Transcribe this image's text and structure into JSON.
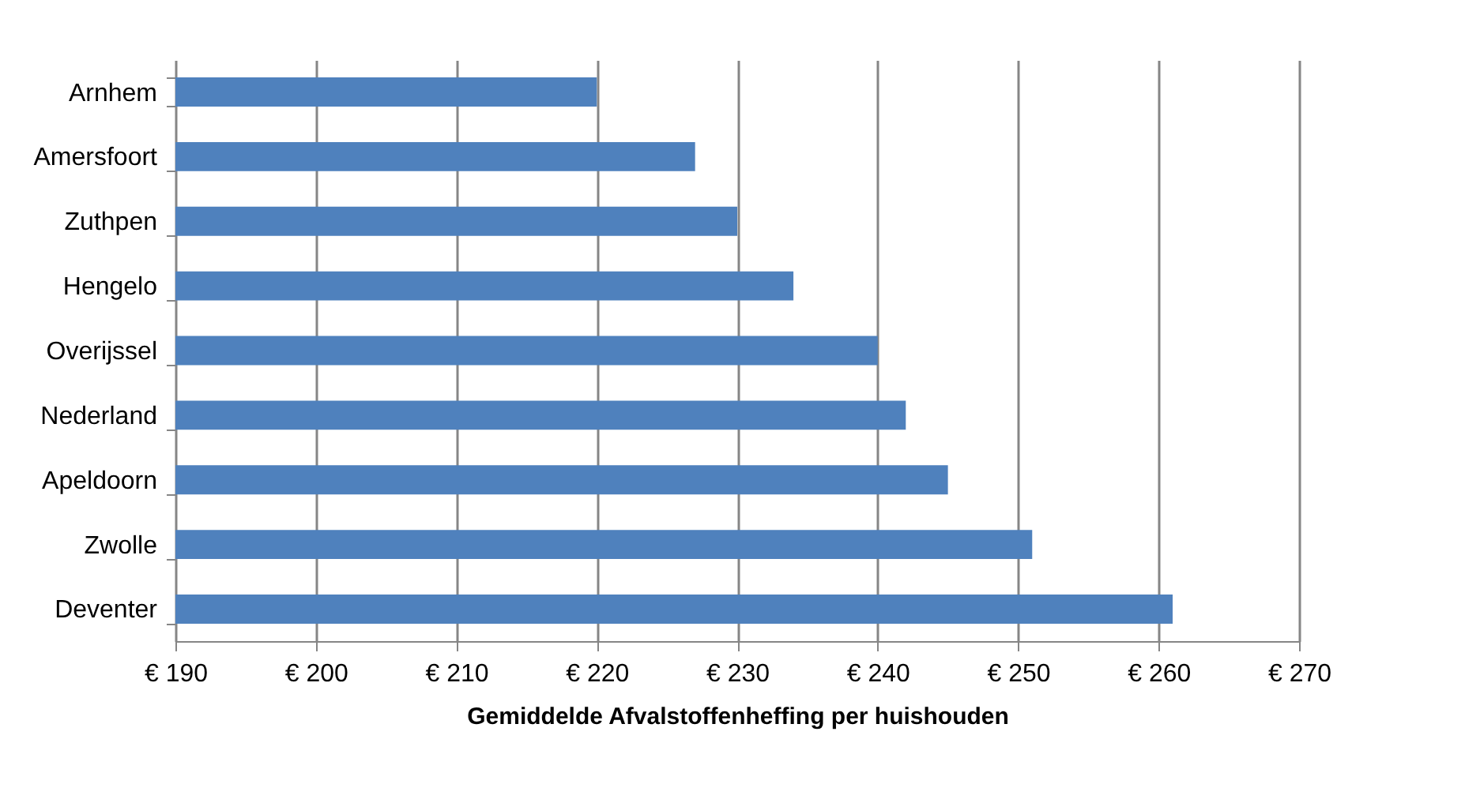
{
  "chart_data": {
    "type": "bar",
    "orientation": "horizontal",
    "xlabel": "Gemiddelde Afvalstoffenheffing  per huishouden",
    "categories": [
      "Arnhem",
      "Amersfoort",
      "Zuthpen",
      "Hengelo",
      "Overijssel",
      "Nederland",
      "Apeldoorn",
      "Zwolle",
      "Deventer"
    ],
    "values": [
      220,
      227,
      230,
      234,
      240,
      242,
      245,
      251,
      261
    ],
    "color": "#4f81bd",
    "xlim": [
      190,
      270
    ],
    "xticks": [
      {
        "value": 190,
        "label": "€ 190"
      },
      {
        "value": 200,
        "label": "€ 200"
      },
      {
        "value": 210,
        "label": "€ 210"
      },
      {
        "value": 220,
        "label": "€ 220"
      },
      {
        "value": 230,
        "label": "€ 230"
      },
      {
        "value": 240,
        "label": "€ 240"
      },
      {
        "value": 250,
        "label": "€ 250"
      },
      {
        "value": 260,
        "label": "€ 260"
      },
      {
        "value": 270,
        "label": "€ 270"
      }
    ],
    "grid": "x"
  }
}
